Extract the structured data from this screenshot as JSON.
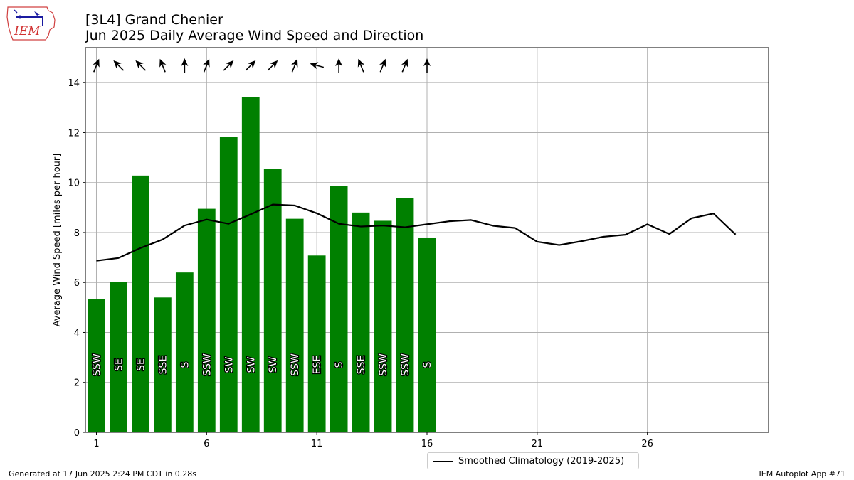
{
  "header": {
    "title_line1": "[3L4] Grand Chenier",
    "title_line2": "Jun 2025 Daily Average Wind Speed and Direction",
    "logo_text": "IEM"
  },
  "footer": {
    "left": "Generated at 17 Jun 2025 2:24 PM CDT in 0.28s",
    "right": "IEM Autoplot App #71"
  },
  "colors": {
    "bar": "#008000",
    "climatology_line": "#000000",
    "grid": "#b0b0b0",
    "label_text": "#ffffff"
  },
  "chart_data": {
    "type": "bar",
    "ylabel": "Average Wind Speed [miles per hour]",
    "xlabel": "",
    "ylim": [
      0,
      15.4
    ],
    "xlim": [
      0.5,
      31.5
    ],
    "xticks": [
      1,
      6,
      11,
      16,
      21,
      26
    ],
    "yticks": [
      0,
      2,
      4,
      6,
      8,
      10,
      12,
      14
    ],
    "grid": true,
    "legend_position": "bottom-center",
    "series": [
      {
        "kind": "bar",
        "days": [
          1,
          2,
          3,
          4,
          5,
          6,
          7,
          8,
          9,
          10,
          11,
          12,
          13,
          14,
          15,
          16
        ],
        "values": [
          5.35,
          6.02,
          10.28,
          5.4,
          6.4,
          8.95,
          11.82,
          13.43,
          10.55,
          8.55,
          7.08,
          9.85,
          8.8,
          8.47,
          9.37,
          7.8
        ],
        "directions": [
          "SSW",
          "SE",
          "SE",
          "SSE",
          "S",
          "SSW",
          "SW",
          "SW",
          "SW",
          "SSW",
          "ESE",
          "S",
          "SSE",
          "SSW",
          "SSW",
          "S"
        ],
        "arrow_bearings_deg": [
          22,
          -45,
          -45,
          -22,
          0,
          22,
          45,
          45,
          45,
          22,
          -75,
          0,
          -22,
          22,
          22,
          0
        ]
      },
      {
        "kind": "line",
        "name": "Smoothed Climatology (2019-2025)",
        "days": [
          1,
          2,
          3,
          4,
          5,
          6,
          7,
          8,
          9,
          10,
          11,
          12,
          13,
          14,
          15,
          16,
          17,
          18,
          19,
          20,
          21,
          22,
          23,
          24,
          25,
          26,
          27,
          28,
          29,
          30
        ],
        "values": [
          6.87,
          6.98,
          7.38,
          7.72,
          8.28,
          8.52,
          8.35,
          8.73,
          9.12,
          9.08,
          8.77,
          8.35,
          8.24,
          8.28,
          8.21,
          8.33,
          8.45,
          8.5,
          8.27,
          8.18,
          7.63,
          7.5,
          7.65,
          7.83,
          7.91,
          8.33,
          7.94,
          8.57,
          8.76,
          7.92
        ]
      }
    ]
  }
}
